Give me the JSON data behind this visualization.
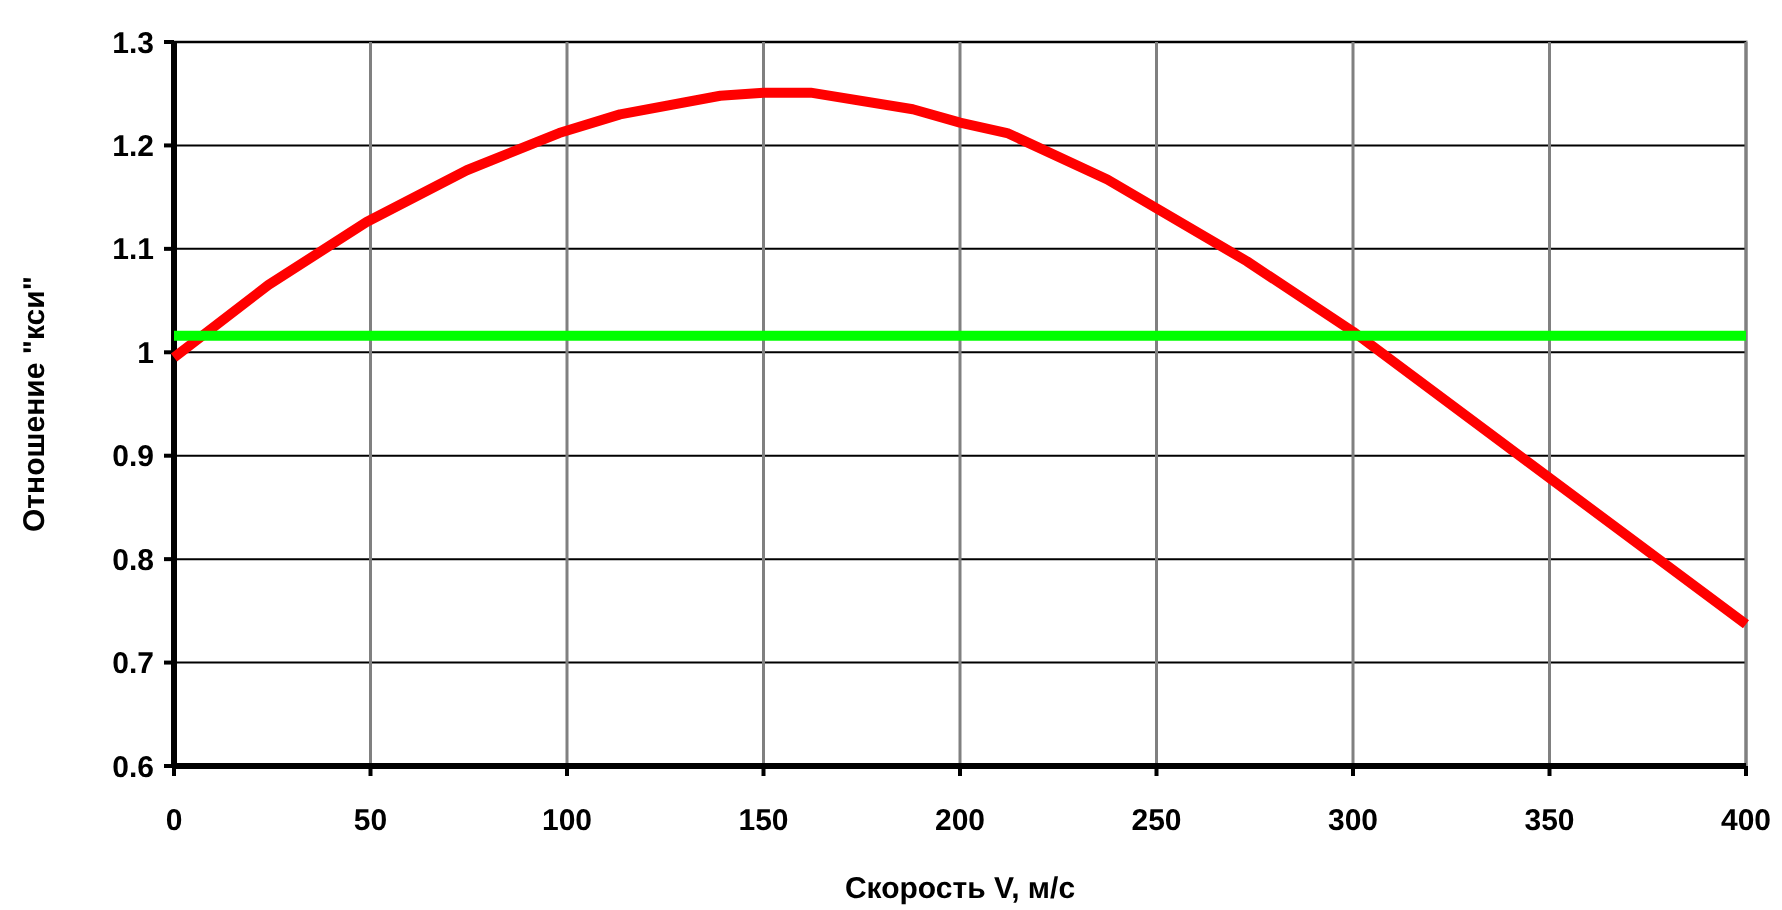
{
  "chart_data": {
    "type": "line",
    "xlabel": "Скорость V, м/с",
    "ylabel": "Отношение \"кси\"",
    "xlim": [
      0,
      400
    ],
    "xticks": [
      0,
      50,
      100,
      150,
      200,
      250,
      300,
      350,
      400
    ],
    "ylim": [
      0.6,
      1.3
    ],
    "yticks": [
      0.6,
      0.7,
      0.8,
      0.9,
      1,
      1.1,
      1.2,
      1.3
    ],
    "grid": true,
    "line_style": "solid",
    "series": [
      {
        "color": "#ff0000",
        "x": [
          0,
          24,
          49,
          74.5,
          98,
          113.5,
          139,
          150,
          162,
          188,
          200,
          212,
          237.5,
          273,
          300,
          400
        ],
        "values": [
          0.995,
          1.065,
          1.126,
          1.176,
          1.212,
          1.23,
          1.248,
          1.251,
          1.251,
          1.235,
          1.222,
          1.212,
          1.167,
          1.088,
          1.02,
          0.737
        ]
      },
      {
        "color": "#00ff00",
        "x": [
          0,
          400
        ],
        "values": [
          1.016,
          1.016
        ]
      }
    ]
  }
}
